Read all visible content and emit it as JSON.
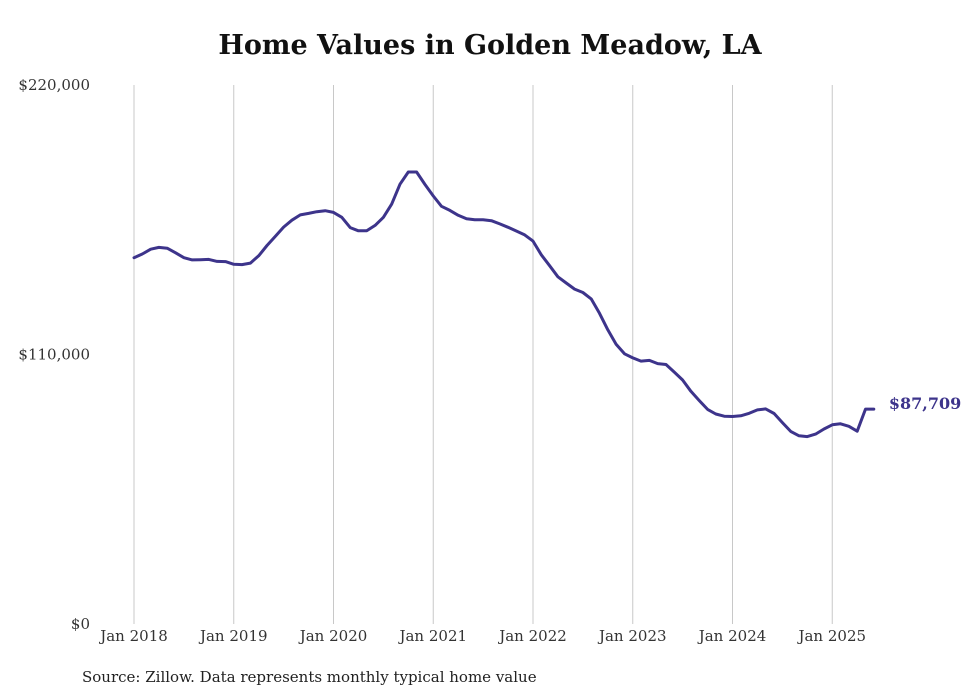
{
  "chart_data": {
    "type": "line",
    "title": "Home Values in Golden Meadow, LA",
    "xlabel": "",
    "ylabel": "",
    "ylim": [
      0,
      220000
    ],
    "y_ticks": [
      {
        "value": 0,
        "label": "$0"
      },
      {
        "value": 110000,
        "label": "$110,000"
      },
      {
        "value": 220000,
        "label": "$220,000"
      }
    ],
    "x_ticks": [
      {
        "value": 2018.0,
        "label": "Jan 2018"
      },
      {
        "value": 2019.0,
        "label": "Jan 2019"
      },
      {
        "value": 2020.0,
        "label": "Jan 2020"
      },
      {
        "value": 2021.0,
        "label": "Jan 2021"
      },
      {
        "value": 2022.0,
        "label": "Jan 2022"
      },
      {
        "value": 2023.0,
        "label": "Jan 2023"
      },
      {
        "value": 2024.0,
        "label": "Jan 2024"
      },
      {
        "value": 2025.0,
        "label": "Jan 2025"
      }
    ],
    "grid": "vertical",
    "line_color": "#3d348b",
    "end_label": "$87,709",
    "series": [
      {
        "x": [
          2018.0,
          2018.083,
          2018.167,
          2018.25,
          2018.333,
          2018.417,
          2018.5,
          2018.583,
          2018.667,
          2018.75,
          2018.833,
          2018.917,
          2019.0,
          2019.083,
          2019.167,
          2019.25,
          2019.333,
          2019.417,
          2019.5,
          2019.583,
          2019.667,
          2019.75,
          2019.833,
          2019.917,
          2020.0,
          2020.083,
          2020.167,
          2020.25,
          2020.333,
          2020.417,
          2020.5,
          2020.583,
          2020.667,
          2020.75,
          2020.833,
          2020.917,
          2021.0,
          2021.083,
          2021.167,
          2021.25,
          2021.333,
          2021.417,
          2021.5,
          2021.583,
          2021.667,
          2021.75,
          2021.833,
          2021.917,
          2022.0,
          2022.083,
          2022.167,
          2022.25,
          2022.333,
          2022.417,
          2022.5,
          2022.583,
          2022.667,
          2022.75,
          2022.833,
          2022.917,
          2023.0,
          2023.083,
          2023.167,
          2023.25,
          2023.333,
          2023.417,
          2023.5,
          2023.583,
          2023.667,
          2023.75,
          2023.833,
          2023.917,
          2024.0,
          2024.083,
          2024.167,
          2024.25,
          2024.333,
          2024.417,
          2024.5,
          2024.583,
          2024.667,
          2024.75,
          2024.833,
          2024.917,
          2025.0,
          2025.083,
          2025.167,
          2025.25,
          2025.333,
          2025.417
        ],
        "values": [
          149500,
          151000,
          153000,
          153700,
          153400,
          151500,
          149500,
          148600,
          148700,
          148800,
          148000,
          147900,
          146800,
          146700,
          147300,
          150300,
          154500,
          158200,
          162000,
          164800,
          167000,
          167600,
          168300,
          168700,
          168000,
          166000,
          161800,
          160500,
          160500,
          162700,
          166000,
          171400,
          179500,
          184500,
          184500,
          179400,
          174700,
          170500,
          168800,
          166800,
          165400,
          165000,
          165000,
          164600,
          163300,
          161900,
          160400,
          158800,
          156300,
          150700,
          146200,
          141700,
          139200,
          136700,
          135300,
          132700,
          126800,
          120100,
          114200,
          110300,
          108600,
          107300,
          107600,
          106300,
          105900,
          102800,
          99600,
          95000,
          91200,
          87600,
          85700,
          84800,
          84700,
          85000,
          86000,
          87400,
          87800,
          85900,
          82200,
          78600,
          76800,
          76500,
          77500,
          79600,
          81300,
          81700,
          80700,
          78700,
          87709,
          87709
        ]
      }
    ]
  },
  "source": "Source: Zillow. Data represents monthly typical home value"
}
